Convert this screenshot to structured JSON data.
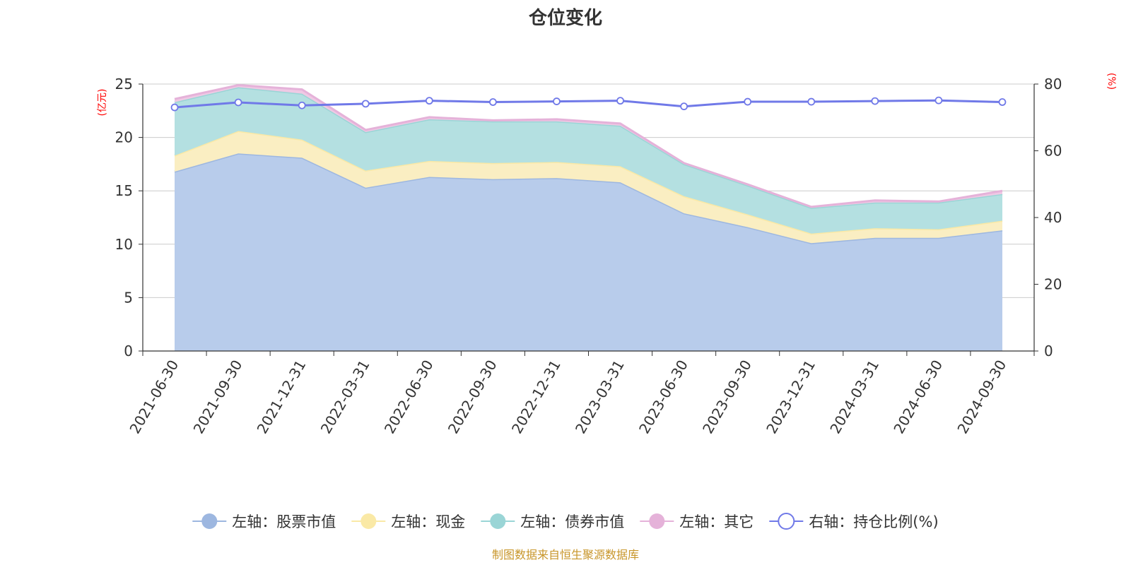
{
  "chart_data": {
    "type": "area",
    "title": "仓位变化",
    "categories": [
      "2021-06-30",
      "2021-09-30",
      "2021-12-31",
      "2022-03-31",
      "2022-06-30",
      "2022-09-30",
      "2022-12-31",
      "2023-03-31",
      "2023-06-30",
      "2023-09-30",
      "2023-12-31",
      "2024-03-31",
      "2024-06-30",
      "2024-09-30"
    ],
    "left_axis": {
      "label": "(亿元)",
      "min": 0,
      "max": 25,
      "ticks": [
        "0",
        "5",
        "10",
        "15",
        "20",
        "25"
      ]
    },
    "right_axis": {
      "label": "(%)",
      "min": 0,
      "max": 80,
      "ticks": [
        "0",
        "20",
        "40",
        "60",
        "80"
      ]
    },
    "stacked_series": [
      {
        "name": "左轴：股票市值",
        "color": "#9db7e0",
        "fill": "#b8cceb",
        "values": [
          16.8,
          18.5,
          18.1,
          15.3,
          16.3,
          16.1,
          16.2,
          15.8,
          12.9,
          11.6,
          10.1,
          10.6,
          10.6,
          11.3
        ]
      },
      {
        "name": "左轴：现金",
        "color": "#fae9a6",
        "fill": "#faeec2",
        "values": [
          1.5,
          2.1,
          1.7,
          1.6,
          1.5,
          1.5,
          1.5,
          1.5,
          1.6,
          1.2,
          0.9,
          0.9,
          0.8,
          0.9
        ]
      },
      {
        "name": "左轴：债券市值",
        "color": "#9ad5d6",
        "fill": "#b4e0e1",
        "values": [
          5.0,
          4.1,
          4.3,
          3.6,
          3.9,
          3.9,
          3.8,
          3.8,
          3.0,
          2.7,
          2.4,
          2.4,
          2.5,
          2.5
        ]
      },
      {
        "name": "左轴：其它",
        "color": "#e5b2d9",
        "fill": "#efc9e4",
        "values": [
          0.3,
          0.2,
          0.4,
          0.2,
          0.2,
          0.1,
          0.2,
          0.2,
          0.1,
          0.1,
          0.1,
          0.2,
          0.1,
          0.3
        ]
      }
    ],
    "line_series": {
      "name": "右轴：持仓比例(%)",
      "color": "#7079e8",
      "values": [
        73.0,
        74.5,
        73.6,
        74.1,
        75.0,
        74.6,
        74.8,
        75.0,
        73.3,
        74.7,
        74.7,
        74.9,
        75.1,
        74.6
      ]
    },
    "source": "制图数据来自恒生聚源数据库"
  }
}
